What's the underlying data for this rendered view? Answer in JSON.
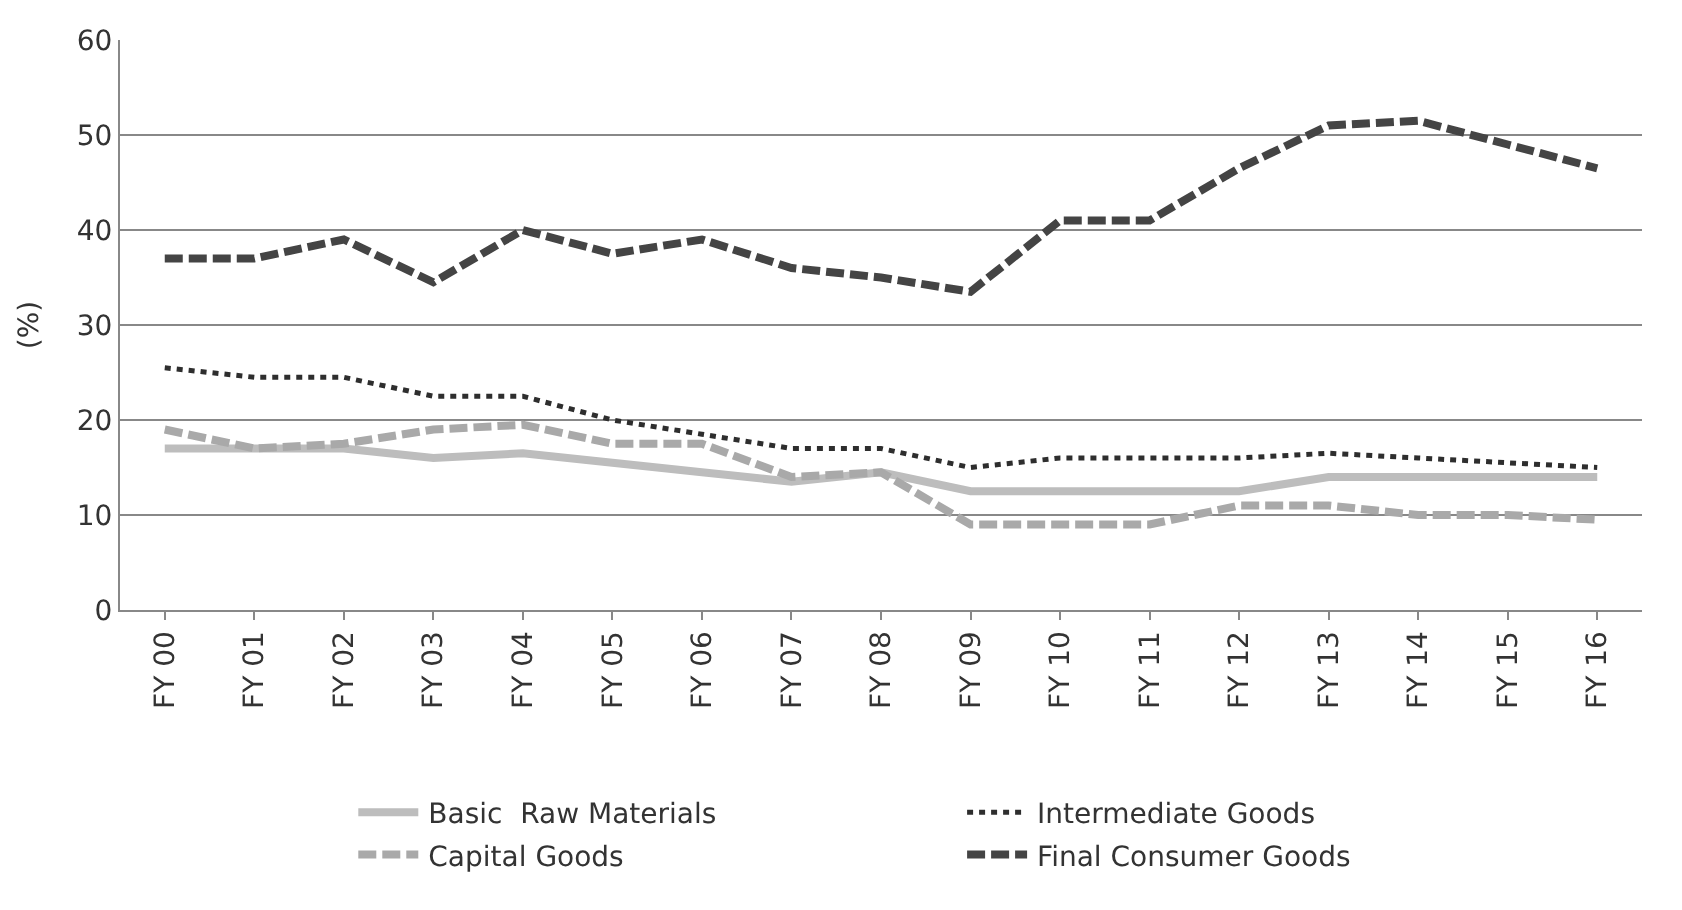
{
  "chart_data": {
    "type": "line",
    "ylabel": "(%)",
    "categories": [
      "FY 00",
      "FY 01",
      "FY 02",
      "FY 03",
      "FY 04",
      "FY 05",
      "FY 06",
      "FY 07",
      "FY 08",
      "FY 09",
      "FY 10",
      "FY 11",
      "FY 12",
      "FY 13",
      "FY 14",
      "FY 15",
      "FY 16"
    ],
    "series": [
      {
        "name": "Basic  Raw Materials",
        "color": "#bdbdbd",
        "line_style": "solid",
        "values": [
          17,
          17,
          17,
          16,
          16.5,
          15.5,
          14.5,
          13.5,
          14.5,
          12.5,
          12.5,
          12.5,
          12.5,
          14,
          14,
          14,
          14
        ]
      },
      {
        "name": "Intermediate Goods",
        "color": "#2e2e2e",
        "line_style": "dotted",
        "values": [
          25.5,
          24.5,
          24.5,
          22.5,
          22.5,
          20,
          18.5,
          17,
          17,
          15,
          16,
          16,
          16,
          16.5,
          16,
          15.5,
          15
        ]
      },
      {
        "name": "Capital Goods",
        "color": "#a9a9a9",
        "line_style": "dashed",
        "values": [
          19,
          17,
          17.5,
          19,
          19.5,
          17.5,
          17.5,
          14,
          14.5,
          9,
          9,
          9,
          11,
          11,
          10,
          10,
          9.5
        ]
      },
      {
        "name": "Final Consumer Goods",
        "color": "#444444",
        "line_style": "dashed",
        "values": [
          37,
          37,
          39,
          34.5,
          40,
          37.5,
          39,
          36,
          35,
          33.5,
          41,
          41,
          46.5,
          51,
          51.5,
          49,
          46.5
        ]
      }
    ],
    "ylim": [
      0,
      60
    ],
    "yticks": [
      0,
      10,
      20,
      30,
      40,
      50,
      60
    ],
    "grid": "y",
    "legend": "bottom",
    "marker": "none"
  }
}
